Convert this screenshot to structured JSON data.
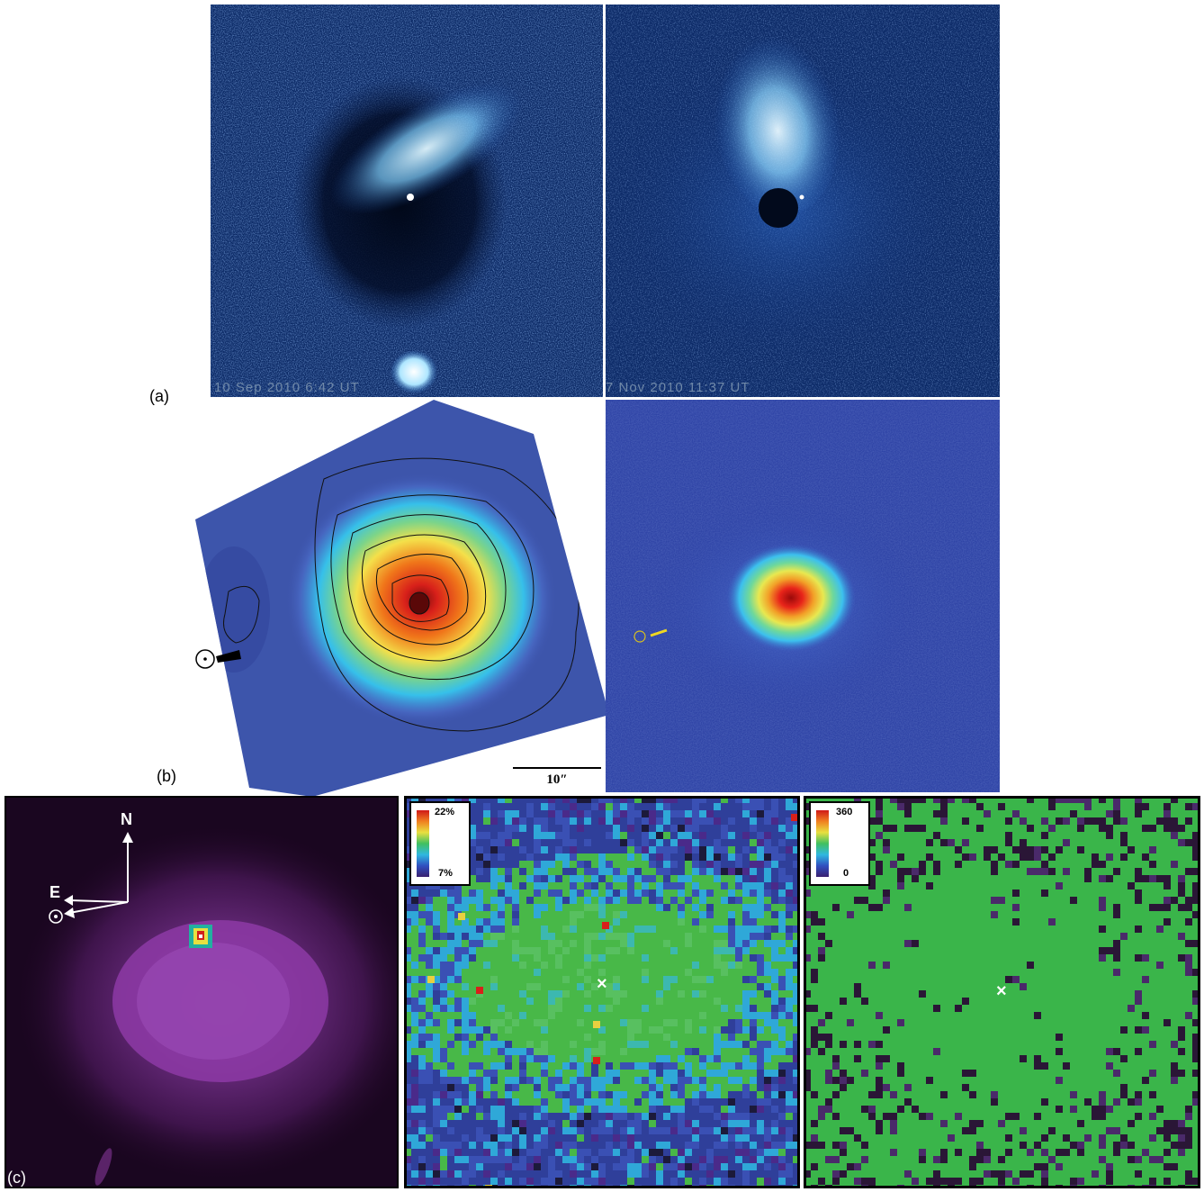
{
  "figure": {
    "labels": {
      "a": "(a)",
      "b": "(b)",
      "c": "(c)"
    }
  },
  "row_a": {
    "left": {
      "timestamp": "10 Sep 2010 6:42 UT"
    },
    "right": {
      "timestamp": "7 Nov 2010 11:37 UT"
    }
  },
  "row_b": {
    "scale_bar": {
      "label": "10″"
    },
    "sun_symbol": "☉"
  },
  "row_c": {
    "compass": {
      "north": "N",
      "east": "E",
      "sun": "☉"
    },
    "colorbar_percent": {
      "max": "22%",
      "min": "7%"
    },
    "colorbar_angle": {
      "max": "360",
      "min": "0"
    },
    "center_marker": "×"
  },
  "colors": {
    "deep_blue": "#0a1e4a",
    "coma_blue": "#6fd0ff",
    "map_green": "#3ab54a",
    "magenta": "#8a3a9a",
    "map_bg": "#2f3f9a"
  }
}
